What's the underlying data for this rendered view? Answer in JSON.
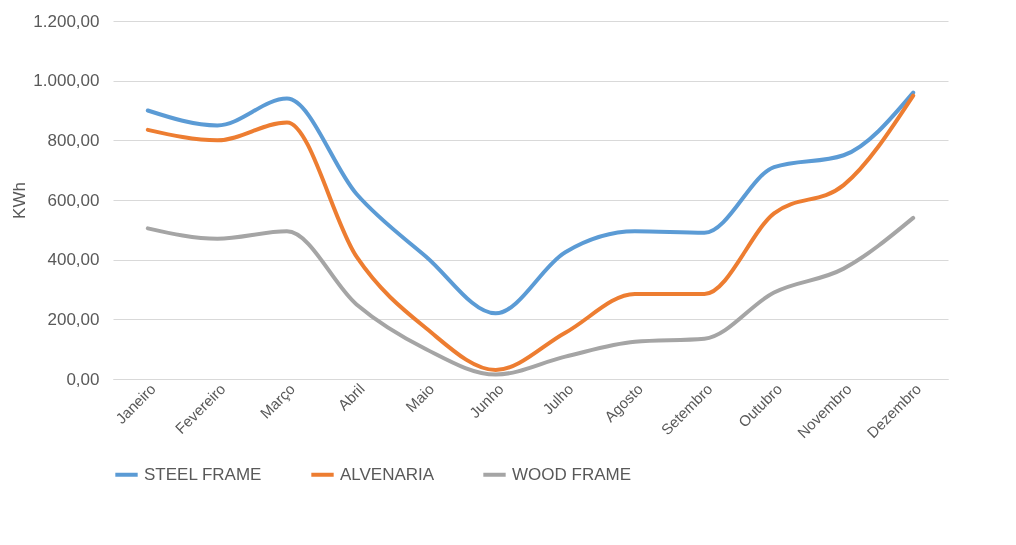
{
  "chart_data": {
    "type": "line",
    "ylabel": "KWh",
    "categories": [
      "Janeiro",
      "Fevereiro",
      "Março",
      "Abril",
      "Maio",
      "Junho",
      "Julho",
      "Agosto",
      "Setembro",
      "Outubro",
      "Novembro",
      "Dezembro"
    ],
    "series": [
      {
        "name": "STEEL FRAME",
        "color": "#5b9bd5",
        "values": [
          900,
          850,
          940,
          620,
          410,
          220,
          425,
          495,
          490,
          710,
          750,
          960
        ]
      },
      {
        "name": "ALVENARIA",
        "color": "#ed7d31",
        "values": [
          835,
          800,
          860,
          410,
          170,
          30,
          155,
          285,
          285,
          555,
          650,
          950
        ]
      },
      {
        "name": "WOOD FRAME",
        "color": "#a5a5a5",
        "values": [
          505,
          470,
          495,
          250,
          100,
          15,
          75,
          125,
          135,
          290,
          370,
          540
        ]
      }
    ],
    "ylim": [
      0,
      1200
    ],
    "yticks": [
      {
        "value": 0,
        "label": "0,00"
      },
      {
        "value": 200,
        "label": "200,00"
      },
      {
        "value": 400,
        "label": "400,00"
      },
      {
        "value": 600,
        "label": "600,00"
      },
      {
        "value": 800,
        "label": "800,00"
      },
      {
        "value": 1000,
        "label": "1.000,00"
      },
      {
        "value": 1200,
        "label": "1.200,00"
      }
    ],
    "grid": "y",
    "legend": "bottom",
    "marker": "none",
    "line_style": "solid"
  }
}
